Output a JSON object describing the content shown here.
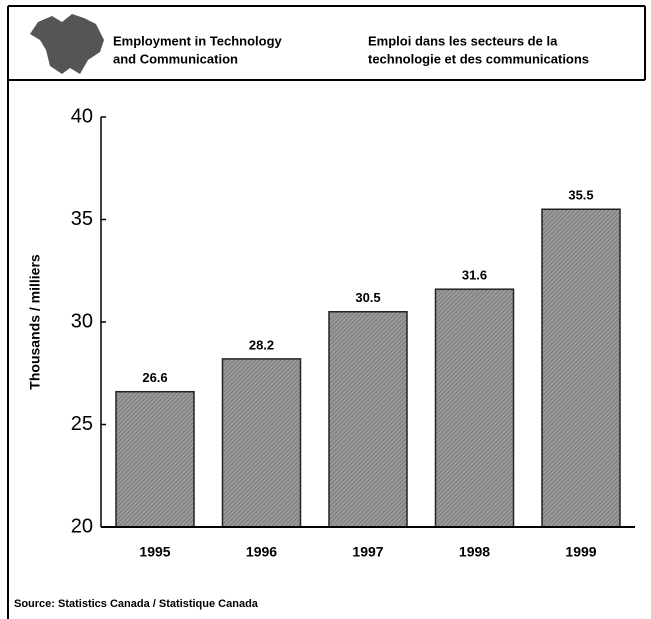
{
  "chart_data": {
    "type": "bar",
    "title": [
      "Employment in Technology",
      "and Communication"
    ],
    "title_fr": [
      "Emploi dans les secteurs de la",
      "technologie et des communications"
    ],
    "y_label": "Thousands / milliers",
    "categories": [
      "1995",
      "1996",
      "1997",
      "1998",
      "1999"
    ],
    "values": [
      26.6,
      28.2,
      30.5,
      31.6,
      35.5
    ],
    "color": "#8a8a8a",
    "ylim": [
      20,
      40
    ],
    "yticks": [
      20,
      25,
      30,
      35,
      40
    ],
    "grid": false,
    "source": "Source: Statistics Canada / Statistique Canada"
  }
}
